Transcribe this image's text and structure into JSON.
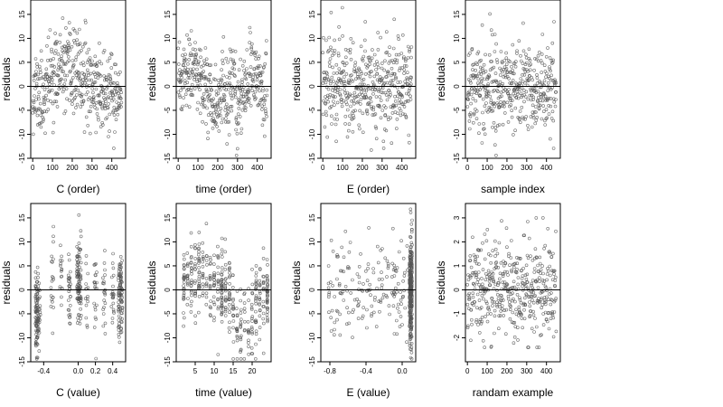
{
  "figure": {
    "layout": "2x4 grid of residual scatter plots"
  },
  "chart_data": [
    {
      "type": "scatter",
      "panel": 1,
      "xlabel": "C (order)",
      "ylabel": "residuals",
      "xlim": [
        -10,
        470
      ],
      "ylim": [
        -15,
        18
      ],
      "xticks": [
        0,
        100,
        200,
        300,
        400
      ],
      "xtick_labels": [
        "0",
        "100",
        "200",
        "300",
        "400"
      ],
      "yticks": [
        -15,
        -10,
        -5,
        0,
        5,
        10,
        15
      ],
      "ytick_labels": [
        "-15",
        "-10",
        "-5",
        "0",
        "5",
        "10",
        "15"
      ],
      "hline": 0,
      "point_count": 450,
      "n": 450,
      "pattern": "smooth wave: low near start (~-5 around x=40), high (~+6) near x=100-200, ~0 after 300",
      "seed": 11
    },
    {
      "type": "scatter",
      "panel": 2,
      "xlabel": "time (order)",
      "ylabel": "residuals",
      "xlim": [
        -10,
        470
      ],
      "ylim": [
        -15,
        18
      ],
      "xticks": [
        0,
        100,
        200,
        300,
        400
      ],
      "xtick_labels": [
        "0",
        "100",
        "200",
        "300",
        "400"
      ],
      "yticks": [
        -15,
        -10,
        -5,
        0,
        5,
        10,
        15
      ],
      "ytick_labels": [
        "-15",
        "-10",
        "-5",
        "0",
        "5",
        "10",
        "15"
      ],
      "hline": 0,
      "point_count": 450,
      "n": 450,
      "pattern": "periodic bands: positive near x=250 and x=420, negative dip around x=320",
      "seed": 23
    },
    {
      "type": "scatter",
      "panel": 3,
      "xlabel": "E (order)",
      "ylabel": "residuals",
      "xlim": [
        -10,
        470
      ],
      "ylim": [
        -15,
        18
      ],
      "xticks": [
        0,
        100,
        200,
        300,
        400
      ],
      "xtick_labels": [
        "0",
        "100",
        "200",
        "300",
        "400"
      ],
      "yticks": [
        -15,
        -10,
        -5,
        0,
        5,
        10,
        15
      ],
      "ytick_labels": [
        "-15",
        "-10",
        "-5",
        "0",
        "5",
        "10",
        "15"
      ],
      "hline": 0,
      "point_count": 450,
      "n": 450,
      "pattern": "no clear trend, random around 0",
      "seed": 37
    },
    {
      "type": "scatter",
      "panel": 4,
      "xlabel": "sample index",
      "ylabel": "residuals",
      "xlim": [
        -10,
        470
      ],
      "ylim": [
        -15,
        18
      ],
      "xticks": [
        0,
        100,
        200,
        300,
        400
      ],
      "xtick_labels": [
        "0",
        "100",
        "200",
        "300",
        "400"
      ],
      "yticks": [
        -15,
        -10,
        -5,
        0,
        5,
        10,
        15
      ],
      "ytick_labels": [
        "-15",
        "-10",
        "-5",
        "0",
        "5",
        "10",
        "15"
      ],
      "hline": 0,
      "point_count": 450,
      "n": 450,
      "pattern": "random around 0",
      "seed": 41
    },
    {
      "type": "scatter",
      "panel": 5,
      "xlabel": "C (value)",
      "ylabel": "residuals",
      "xlim": [
        -0.55,
        0.55
      ],
      "ylim": [
        -15,
        18
      ],
      "xticks": [
        -0.4,
        0.0,
        0.2,
        0.4
      ],
      "xtick_labels": [
        "-0.4",
        "0.0",
        "0.2",
        "0.4"
      ],
      "yticks": [
        -15,
        -10,
        -5,
        0,
        5,
        10,
        15
      ],
      "ytick_labels": [
        "-15",
        "-10",
        "-5",
        "0",
        "5",
        "10",
        "15"
      ],
      "hline": 0,
      "point_count": 450,
      "n": 450,
      "pattern": "vertical clusters at discrete C values, dense at -0.48, 0.0 and 0.5",
      "seed": 53
    },
    {
      "type": "scatter",
      "panel": 6,
      "xlabel": "time (value)",
      "ylabel": "residuals",
      "xlim": [
        0,
        25
      ],
      "ylim": [
        -15,
        18
      ],
      "xticks": [
        5,
        10,
        15,
        20
      ],
      "xtick_labels": [
        "5",
        "10",
        "15",
        "20"
      ],
      "yticks": [
        -15,
        -10,
        -5,
        0,
        5,
        10,
        15
      ],
      "ytick_labels": [
        "-15",
        "-10",
        "-5",
        "0",
        "5",
        "10",
        "15"
      ],
      "hline": 0,
      "point_count": 450,
      "n": 450,
      "pattern": "vertical columns at integer times 2-24, dense columns near 12 and 24",
      "seed": 67
    },
    {
      "type": "scatter",
      "panel": 7,
      "xlabel": "E (value)",
      "ylabel": "residuals",
      "xlim": [
        -0.9,
        0.15
      ],
      "ylim": [
        -15,
        18
      ],
      "xticks": [
        -0.8,
        -0.4,
        0.0
      ],
      "xtick_labels": [
        "-0.8",
        "-0.4",
        "0.0"
      ],
      "yticks": [
        -15,
        -10,
        -5,
        0,
        5,
        10,
        15
      ],
      "ytick_labels": [
        "-15",
        "-10",
        "-5",
        "0",
        "5",
        "10",
        "15"
      ],
      "hline": 0,
      "point_count": 450,
      "n": 450,
      "pattern": "sparse points across left, very dense vertical band at E approx 0.1",
      "seed": 79
    },
    {
      "type": "scatter",
      "panel": 8,
      "xlabel": "randam example",
      "ylabel": "residuals",
      "xlim": [
        -10,
        470
      ],
      "ylim": [
        -3.0,
        3.6
      ],
      "xticks": [
        0,
        100,
        200,
        300,
        400
      ],
      "xtick_labels": [
        "0",
        "100",
        "200",
        "300",
        "400"
      ],
      "yticks": [
        -2,
        -1,
        0,
        1,
        2,
        3
      ],
      "ytick_labels": [
        "-2",
        "-1",
        "0",
        "1",
        "2",
        "3"
      ],
      "hline": 0,
      "point_count": 450,
      "n": 450,
      "pattern": "standard normal noise, no trend",
      "seed": 97
    }
  ],
  "colors": {
    "point": "#555555",
    "axis": "#000000",
    "background": "#ffffff"
  }
}
